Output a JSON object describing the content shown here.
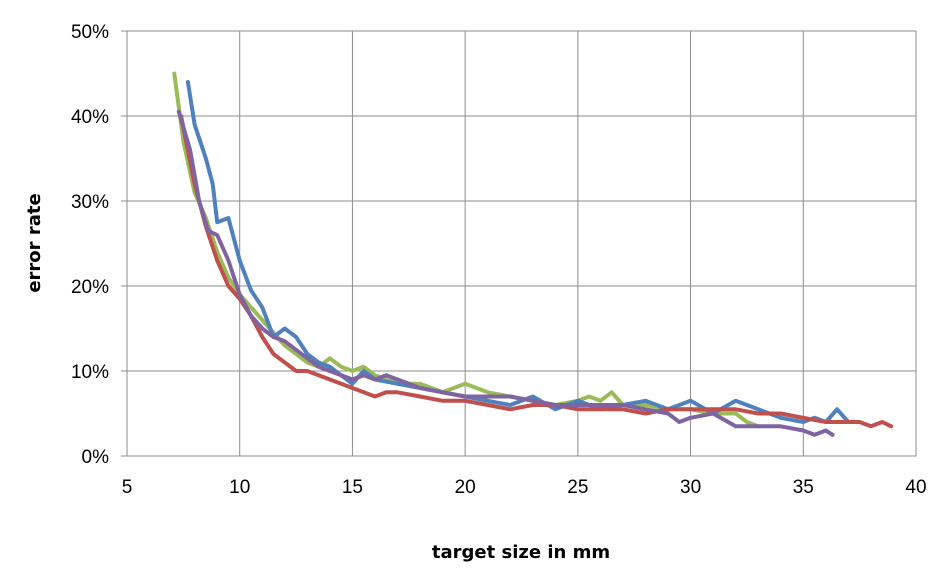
{
  "chart_data": {
    "type": "line",
    "title": "",
    "xlabel": "target size in mm",
    "ylabel": "error rate",
    "xlim": [
      5,
      40
    ],
    "ylim": [
      0,
      50
    ],
    "x_ticks": [
      5,
      10,
      15,
      20,
      25,
      30,
      35,
      40
    ],
    "y_ticks": [
      0,
      10,
      20,
      30,
      40,
      50
    ],
    "x_tick_labels": [
      "5",
      "10",
      "15",
      "20",
      "25",
      "30",
      "35",
      "40"
    ],
    "y_tick_labels": [
      "0%",
      "10%",
      "20%",
      "30%",
      "40%",
      "50%"
    ],
    "grid": true,
    "legend": "none",
    "series": [
      {
        "color": "#9bbb59",
        "x": [
          7.1,
          7.5,
          8.0,
          8.5,
          9.0,
          9.5,
          10.0,
          10.5,
          11.0,
          11.5,
          12.0,
          12.5,
          13.0,
          13.5,
          14.0,
          14.5,
          15.0,
          15.5,
          16.0,
          16.5,
          17.0,
          18.0,
          19.0,
          20.0,
          20.5,
          21.0,
          22.0,
          23.0,
          24.0,
          25.0,
          25.5,
          26.0,
          26.5,
          27.0,
          28.0,
          29.0,
          30.0,
          31.0,
          32.0,
          32.5,
          33.0
        ],
        "y": [
          45,
          37,
          31,
          28,
          24,
          21,
          19,
          17.5,
          16,
          14.5,
          13,
          12,
          11,
          10.5,
          11.5,
          10.5,
          10,
          10.5,
          9.5,
          9,
          8.5,
          8.5,
          7.5,
          8.5,
          8,
          7.5,
          7,
          6.5,
          6,
          6.5,
          7,
          6.5,
          7.5,
          6,
          6,
          5.5,
          5.5,
          5,
          5,
          4,
          3.5
        ]
      },
      {
        "color": "#4f81bd",
        "x": [
          7.7,
          8.0,
          8.5,
          8.8,
          9.0,
          9.5,
          10.0,
          10.5,
          11.0,
          11.5,
          12.0,
          12.5,
          13.0,
          13.5,
          14.0,
          14.5,
          15.0,
          15.5,
          16.0,
          17.0,
          18.0,
          19.0,
          20.0,
          21.0,
          22.0,
          23.0,
          24.0,
          25.0,
          26.0,
          27.0,
          28.0,
          29.0,
          30.0,
          31.0,
          32.0,
          33.0,
          34.0,
          35.0,
          35.5,
          36.0,
          36.5,
          37.0
        ],
        "y": [
          44,
          39,
          35,
          32,
          27.5,
          28,
          23,
          19.5,
          17.5,
          14,
          15,
          14,
          12,
          11,
          10.5,
          9.5,
          8.5,
          10,
          9,
          8.5,
          8,
          7.5,
          7,
          6.5,
          6,
          7,
          5.5,
          6.5,
          5.5,
          6,
          6.5,
          5.5,
          6.5,
          5,
          6.5,
          5.5,
          4.5,
          4,
          4.5,
          4,
          5.5,
          4
        ]
      },
      {
        "color": "#c0504d",
        "x": [
          7.4,
          8.0,
          8.5,
          9.0,
          9.5,
          10.0,
          10.5,
          11.0,
          11.5,
          12.0,
          12.5,
          13.0,
          13.5,
          14.0,
          14.5,
          15.0,
          16.0,
          16.5,
          17.0,
          18.0,
          19.0,
          20.0,
          21.0,
          22.0,
          23.0,
          24.0,
          25.0,
          26.0,
          27.0,
          28.0,
          29.0,
          30.0,
          31.0,
          32.0,
          33.0,
          34.0,
          35.0,
          36.0,
          37.0,
          37.5,
          38.0,
          38.5,
          38.9
        ],
        "y": [
          40,
          32,
          27,
          23,
          20,
          18.5,
          16.5,
          14,
          12,
          11,
          10,
          10,
          9.5,
          9,
          8.5,
          8,
          7,
          7.5,
          7.5,
          7,
          6.5,
          6.5,
          6,
          5.5,
          6,
          6,
          5.5,
          5.5,
          5.5,
          5,
          5.5,
          5.5,
          5.5,
          5.5,
          5,
          5,
          4.5,
          4,
          4,
          4,
          3.5,
          4,
          3.5
        ]
      },
      {
        "color": "#8064a2",
        "x": [
          7.3,
          7.8,
          8.2,
          8.6,
          9.0,
          9.5,
          10.0,
          10.5,
          11.0,
          11.5,
          12.0,
          12.5,
          13.0,
          13.5,
          14.0,
          14.5,
          15.0,
          15.5,
          16.0,
          16.5,
          17.0,
          17.5,
          18.0,
          19.0,
          20.0,
          21.0,
          22.0,
          23.0,
          24.0,
          25.0,
          26.0,
          27.0,
          28.0,
          29.0,
          29.5,
          30.0,
          31.0,
          32.0,
          33.0,
          34.0,
          35.0,
          35.5,
          36.0,
          36.3
        ],
        "y": [
          40.5,
          36,
          30,
          26.5,
          26,
          23,
          19,
          16.5,
          15,
          14,
          13.5,
          12.5,
          11.5,
          10.5,
          10,
          9.5,
          9,
          9.5,
          9,
          9.5,
          9,
          8.5,
          8,
          7.5,
          7,
          7,
          7,
          6.5,
          6,
          6,
          6,
          6,
          5.5,
          5,
          4,
          4.5,
          5,
          3.5,
          3.5,
          3.5,
          3,
          2.5,
          3,
          2.5
        ]
      }
    ]
  }
}
